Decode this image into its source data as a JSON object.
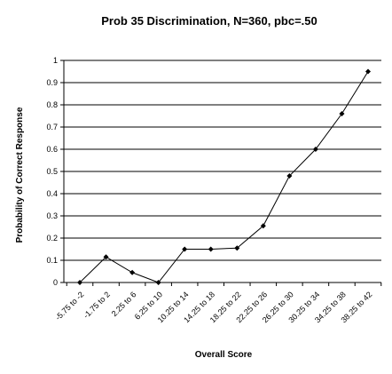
{
  "chart_data": {
    "type": "line",
    "title": "Prob 35 Discrimination, N=360, pbc=.50",
    "xlabel": "Overall Score",
    "ylabel": "Probability of Correct Response",
    "categories": [
      "-5.75 to -2",
      "-1.75 to 2",
      "2.25 to 6",
      "6.25 to 10",
      "10.25 to 14",
      "14.25 to 18",
      "18.25 to 22",
      "22.25 to 26",
      "26.25 to 30",
      "30.25 to 34",
      "34.25 to 38",
      "38.25 to 42"
    ],
    "values": [
      0,
      0.115,
      0.045,
      0,
      0.15,
      0.15,
      0.155,
      0.255,
      0.48,
      0.6,
      0.76,
      0.95
    ],
    "ylim": [
      0,
      1
    ],
    "yticks": [
      "0",
      "0.1",
      "0.2",
      "0.3",
      "0.4",
      "0.5",
      "0.6",
      "0.7",
      "0.8",
      "0.9",
      "1"
    ],
    "grid": true,
    "marker": "diamond"
  }
}
